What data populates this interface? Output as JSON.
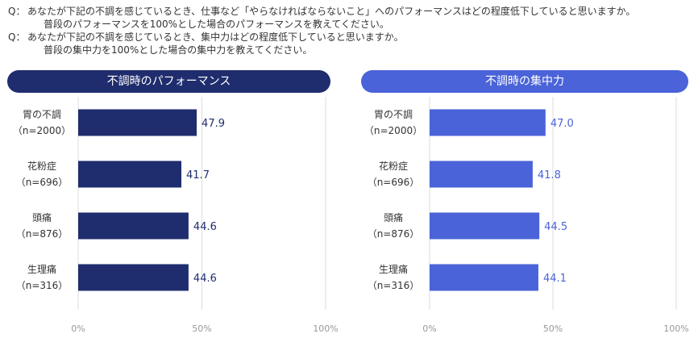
{
  "questions": [
    {
      "marker": "Q：",
      "line1": "あなたが下記の不調を感じているとき、仕事など「やらなければならないこと」へのパフォーマンスはどの程度低下していると思いますか。",
      "line2": "普段のパフォーマンスを100%とした場合のパフォーマンスを教えてください。"
    },
    {
      "marker": "Q：",
      "line1": "あなたが下記の不調を感じているとき、集中力はどの程度低下していると思いますか。",
      "line2": "普段の集中力を100%とした場合の集中力を教えてください。"
    }
  ],
  "colors": {
    "left": "#1f2d6e",
    "right": "#4a63d8",
    "grid": "#dddddd",
    "axis": "#999999"
  },
  "chart_data": [
    {
      "type": "bar",
      "title": "不調時のパフォーマンス",
      "categories": [
        {
          "name": "胃の不調",
          "n": "（n=2000）"
        },
        {
          "name": "花粉症",
          "n": "（n=696）"
        },
        {
          "name": "頭痛",
          "n": "（n=876）"
        },
        {
          "name": "生理痛",
          "n": "（n=316）"
        }
      ],
      "values": [
        47.9,
        41.7,
        44.6,
        44.6
      ],
      "value_labels": [
        "47.9",
        "41.7",
        "44.6",
        "44.6"
      ],
      "xlim": [
        0,
        100
      ],
      "ticks": [
        {
          "v": 0,
          "label": "0%"
        },
        {
          "v": 50,
          "label": "50%"
        },
        {
          "v": 100,
          "label": "100%"
        }
      ],
      "orientation": "horizontal",
      "grid": true
    },
    {
      "type": "bar",
      "title": "不調時の集中力",
      "categories": [
        {
          "name": "胃の不調",
          "n": "（n=2000）"
        },
        {
          "name": "花粉症",
          "n": "（n=696）"
        },
        {
          "name": "頭痛",
          "n": "（n=876）"
        },
        {
          "name": "生理痛",
          "n": "（n=316）"
        }
      ],
      "values": [
        47.0,
        41.8,
        44.5,
        44.1
      ],
      "value_labels": [
        "47.0",
        "41.8",
        "44.5",
        "44.1"
      ],
      "xlim": [
        0,
        100
      ],
      "ticks": [
        {
          "v": 0,
          "label": "0%"
        },
        {
          "v": 50,
          "label": "50%"
        },
        {
          "v": 100,
          "label": "100%"
        }
      ],
      "orientation": "horizontal",
      "grid": true
    }
  ]
}
